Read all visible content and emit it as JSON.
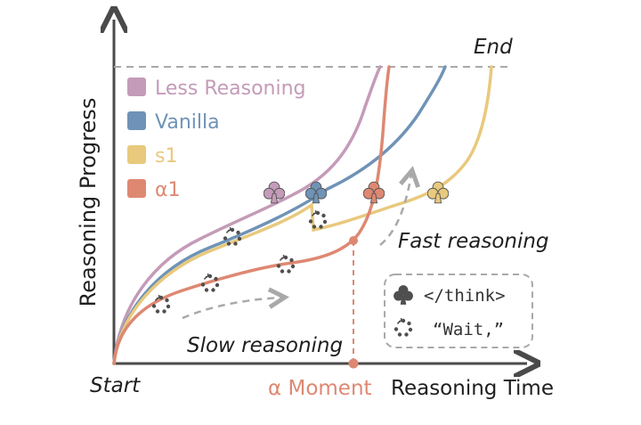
{
  "axes": {
    "y_label": "Reasoning Progress",
    "x_label": "Reasoning Time",
    "start_label": "Start",
    "end_label": "End"
  },
  "legend": [
    {
      "name": "Less Reasoning",
      "color": "#c49bb8"
    },
    {
      "name": "Vanilla",
      "color": "#6f93b6"
    },
    {
      "name": "s1",
      "color": "#e8c97d"
    },
    {
      "name": "α1",
      "color": "#de8872"
    }
  ],
  "annotations": {
    "slow": "Slow reasoning",
    "fast": "Fast reasoning",
    "alpha_moment": "α Moment"
  },
  "key_box": {
    "think_token": "</think>",
    "wait_token": "“Wait,”",
    "club_icon": "club-icon",
    "cycle_icon": "cycle-icon"
  },
  "colors": {
    "axis": "#4a4a4a",
    "dash": "#a9a9a9",
    "dot": "#4f4f4f"
  }
}
